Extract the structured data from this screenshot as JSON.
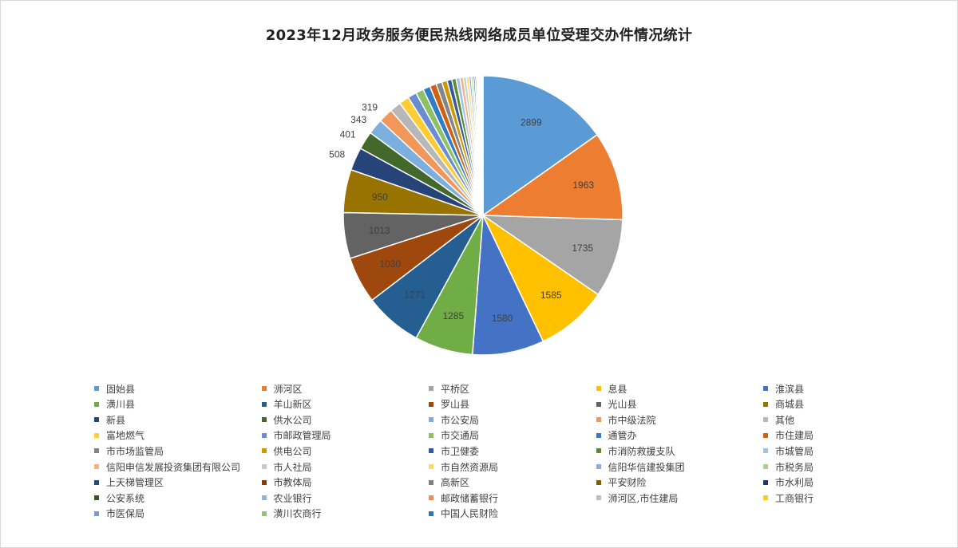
{
  "chart_data": {
    "type": "pie",
    "title": "2023年12月政务服务便民热线网络成员单位受理交办件情况统计",
    "start_angle_deg": 0,
    "direction": "clockwise",
    "legend_position": "bottom",
    "slices": [
      {
        "name": "固始县",
        "value": 2899,
        "color": "#5b9bd5",
        "label": "2899"
      },
      {
        "name": "浉河区",
        "value": 1963,
        "color": "#ed7d31",
        "label": "1963"
      },
      {
        "name": "平桥区",
        "value": 1735,
        "color": "#a5a5a5",
        "label": "1735"
      },
      {
        "name": "息县",
        "value": 1585,
        "color": "#ffc000",
        "label": "1585"
      },
      {
        "name": "淮滨县",
        "value": 1580,
        "color": "#4472c4",
        "label": "1580"
      },
      {
        "name": "潢川县",
        "value": 1285,
        "color": "#70ad47",
        "label": "1285"
      },
      {
        "name": "羊山新区",
        "value": 1271,
        "color": "#255e91",
        "label": "1271"
      },
      {
        "name": "罗山县",
        "value": 1030,
        "color": "#9e480e",
        "label": "1030"
      },
      {
        "name": "光山县",
        "value": 1013,
        "color": "#636363",
        "label": "1013"
      },
      {
        "name": "商城县",
        "value": 950,
        "color": "#997300",
        "label": "950"
      },
      {
        "name": "新县",
        "value": 508,
        "color": "#264478",
        "label": "508"
      },
      {
        "name": "供水公司",
        "value": 401,
        "color": "#43682b",
        "label": "401"
      },
      {
        "name": "市公安局",
        "value": 343,
        "color": "#7cafdd",
        "label": "343"
      },
      {
        "name": "市中级法院",
        "value": 319,
        "color": "#f1975a",
        "label": "319"
      },
      {
        "name": "其他",
        "value": 250,
        "color": "#b7b7b7"
      },
      {
        "name": "富地燃气",
        "value": 220,
        "color": "#ffcd33"
      },
      {
        "name": "市邮政管理局",
        "value": 195,
        "color": "#698ed0"
      },
      {
        "name": "市交通局",
        "value": 175,
        "color": "#8cc168"
      },
      {
        "name": "通管办",
        "value": 160,
        "color": "#327dc2"
      },
      {
        "name": "市住建局",
        "value": 145,
        "color": "#d26012"
      },
      {
        "name": "市市场监管局",
        "value": 130,
        "color": "#848484"
      },
      {
        "name": "供电公司",
        "value": 118,
        "color": "#cc9a00"
      },
      {
        "name": "市卫健委",
        "value": 105,
        "color": "#335aa1"
      },
      {
        "name": "市消防救援支队",
        "value": 95,
        "color": "#5a8a39"
      },
      {
        "name": "市城管局",
        "value": 85,
        "color": "#9dc3e6"
      },
      {
        "name": "信阳申信发展投资集团有限公司",
        "value": 75,
        "color": "#f4b183"
      },
      {
        "name": "市人社局",
        "value": 65,
        "color": "#c9c9c9"
      },
      {
        "name": "市自然资源局",
        "value": 58,
        "color": "#ffd966"
      },
      {
        "name": "信阳华信建投集团",
        "value": 50,
        "color": "#8faadc"
      },
      {
        "name": "市税务局",
        "value": 44,
        "color": "#a9d18e"
      },
      {
        "name": "上天梯管理区",
        "value": 38,
        "color": "#1f4e79"
      },
      {
        "name": "市教体局",
        "value": 33,
        "color": "#843c0c"
      },
      {
        "name": "高新区",
        "value": 28,
        "color": "#7f7f7f"
      },
      {
        "name": "平安财险",
        "value": 24,
        "color": "#7f6000"
      },
      {
        "name": "市水利局",
        "value": 20,
        "color": "#203864"
      },
      {
        "name": "公安系统",
        "value": 16,
        "color": "#385723"
      },
      {
        "name": "农业银行",
        "value": 13,
        "color": "#8eb4e3"
      },
      {
        "name": "邮政储蓄银行",
        "value": 11,
        "color": "#f08e55"
      },
      {
        "name": "浉河区,市住建局",
        "value": 9,
        "color": "#bfbfbf"
      },
      {
        "name": "工商银行",
        "value": 7,
        "color": "#ffc926"
      },
      {
        "name": "市医保局",
        "value": 6,
        "color": "#7a9bd8"
      },
      {
        "name": "潢川农商行",
        "value": 5,
        "color": "#93c47d"
      },
      {
        "name": "中国人民财险",
        "value": 4,
        "color": "#2e75b6"
      }
    ]
  }
}
